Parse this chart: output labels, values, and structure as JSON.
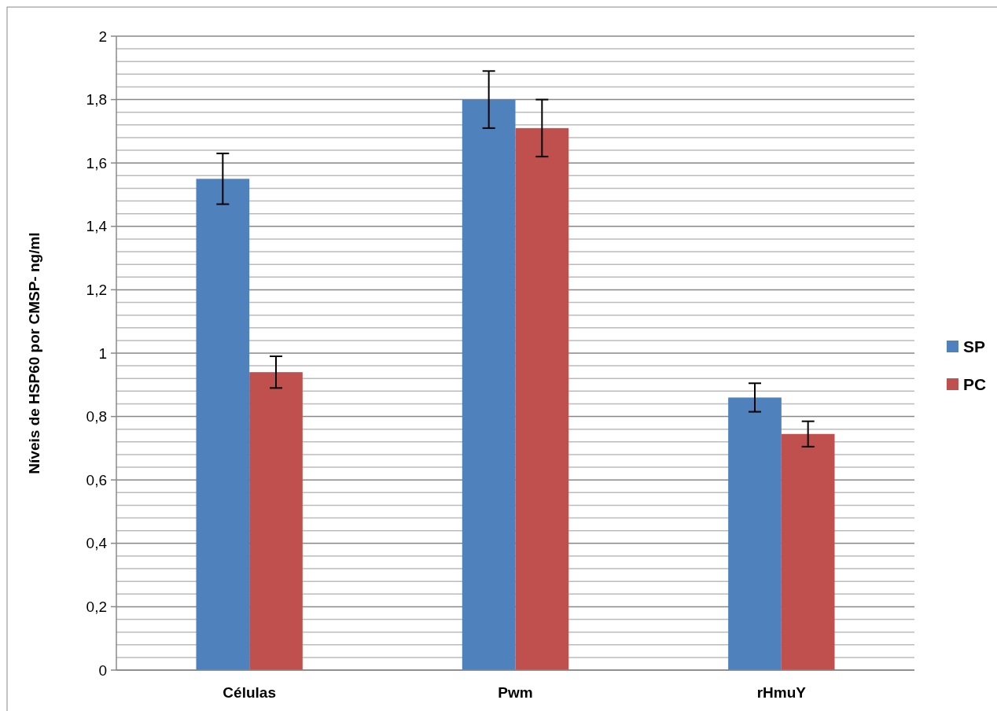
{
  "chart_data": {
    "type": "bar",
    "ylabel": "Níveis de HSP60 por CMSP- ng/ml",
    "categories": [
      "Células",
      "Pwm",
      "rHmuY"
    ],
    "series": [
      {
        "name": "SP",
        "color": "#4f81bd",
        "values": [
          1.55,
          1.8,
          0.86
        ],
        "errors": [
          0.08,
          0.09,
          0.045
        ]
      },
      {
        "name": "PC",
        "color": "#c0504d",
        "values": [
          0.94,
          1.71,
          0.745
        ],
        "errors": [
          0.05,
          0.09,
          0.04
        ]
      }
    ],
    "ylim": [
      0,
      2
    ],
    "yticks": [
      {
        "value": 0,
        "label": "0"
      },
      {
        "value": 0.04,
        "label": null
      },
      {
        "value": 0.08,
        "label": null
      },
      {
        "value": 0.12,
        "label": null
      },
      {
        "value": 0.16,
        "label": null
      },
      {
        "value": 0.2,
        "label": "0,2"
      },
      {
        "value": 0.24,
        "label": null
      },
      {
        "value": 0.28,
        "label": null
      },
      {
        "value": 0.32,
        "label": null
      },
      {
        "value": 0.36,
        "label": null
      },
      {
        "value": 0.4,
        "label": "0,4"
      },
      {
        "value": 0.44,
        "label": null
      },
      {
        "value": 0.48,
        "label": null
      },
      {
        "value": 0.52,
        "label": null
      },
      {
        "value": 0.56,
        "label": null
      },
      {
        "value": 0.6,
        "label": "0,6"
      },
      {
        "value": 0.64,
        "label": null
      },
      {
        "value": 0.68,
        "label": null
      },
      {
        "value": 0.72,
        "label": null
      },
      {
        "value": 0.76,
        "label": null
      },
      {
        "value": 0.8,
        "label": "0,8"
      },
      {
        "value": 0.84,
        "label": null
      },
      {
        "value": 0.88,
        "label": null
      },
      {
        "value": 0.92,
        "label": null
      },
      {
        "value": 0.96,
        "label": null
      },
      {
        "value": 1,
        "label": "1"
      },
      {
        "value": 1.04,
        "label": null
      },
      {
        "value": 1.08,
        "label": null
      },
      {
        "value": 1.12,
        "label": null
      },
      {
        "value": 1.16,
        "label": null
      },
      {
        "value": 1.2,
        "label": "1,2"
      },
      {
        "value": 1.24,
        "label": null
      },
      {
        "value": 1.28,
        "label": null
      },
      {
        "value": 1.32,
        "label": null
      },
      {
        "value": 1.36,
        "label": null
      },
      {
        "value": 1.4,
        "label": "1,4"
      },
      {
        "value": 1.44,
        "label": null
      },
      {
        "value": 1.48,
        "label": null
      },
      {
        "value": 1.52,
        "label": null
      },
      {
        "value": 1.56,
        "label": null
      },
      {
        "value": 1.6,
        "label": "1,6"
      },
      {
        "value": 1.64,
        "label": null
      },
      {
        "value": 1.68,
        "label": null
      },
      {
        "value": 1.72,
        "label": null
      },
      {
        "value": 1.76,
        "label": null
      },
      {
        "value": 1.8,
        "label": "1,8"
      },
      {
        "value": 1.84,
        "label": null
      },
      {
        "value": 1.88,
        "label": null
      },
      {
        "value": 1.92,
        "label": null
      },
      {
        "value": 1.96,
        "label": null
      },
      {
        "value": 2,
        "label": "2"
      }
    ],
    "grid": true,
    "legend": "right"
  }
}
